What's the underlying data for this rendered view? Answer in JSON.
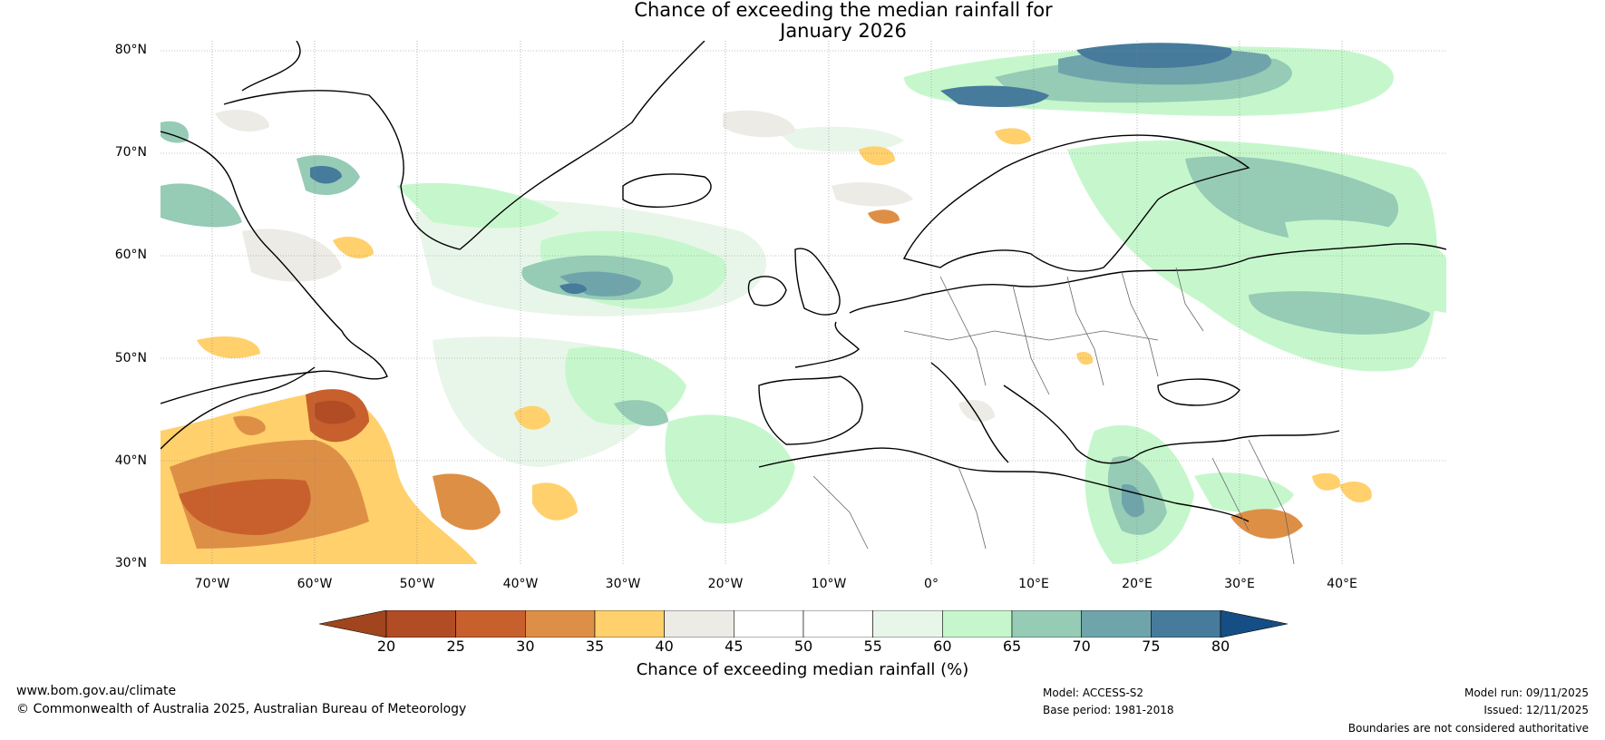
{
  "title_line1": "Chance of exceeding the median rainfall for",
  "title_line2": "January 2026",
  "latitude_labels": [
    "80°N",
    "70°N",
    "60°N",
    "50°N",
    "40°N",
    "30°N"
  ],
  "longitude_labels": [
    "70°W",
    "60°W",
    "50°W",
    "40°W",
    "30°W",
    "20°W",
    "10°W",
    "0°",
    "10°E",
    "20°E",
    "30°E",
    "40°E"
  ],
  "colorbar": {
    "ticks": [
      "20",
      "25",
      "30",
      "35",
      "40",
      "45",
      "50",
      "55",
      "60",
      "65",
      "70",
      "75",
      "80"
    ],
    "colors": [
      "#a0451d",
      "#b24c25",
      "#c7602d",
      "#de8f46",
      "#ffd06c",
      "#ecebe6",
      "#ffffff",
      "#ffffff",
      "#e8f6e9",
      "#c6f7cc",
      "#96cbb6",
      "#6fa5aa",
      "#477b9c",
      "#154e84"
    ],
    "label": "Chance of exceeding median rainfall (%)"
  },
  "footer": {
    "website": "www.bom.gov.au/climate",
    "copyright": "© Commonwealth of Australia 2025, Australian Bureau of Meteorology",
    "model": "Model: ACCESS-S2",
    "base_period": "Base period: 1981-2018",
    "model_run": "Model run: 09/11/2025",
    "issued": "Issued: 12/11/2025",
    "disclaimer": "Boundaries are not considered authoritative"
  }
}
